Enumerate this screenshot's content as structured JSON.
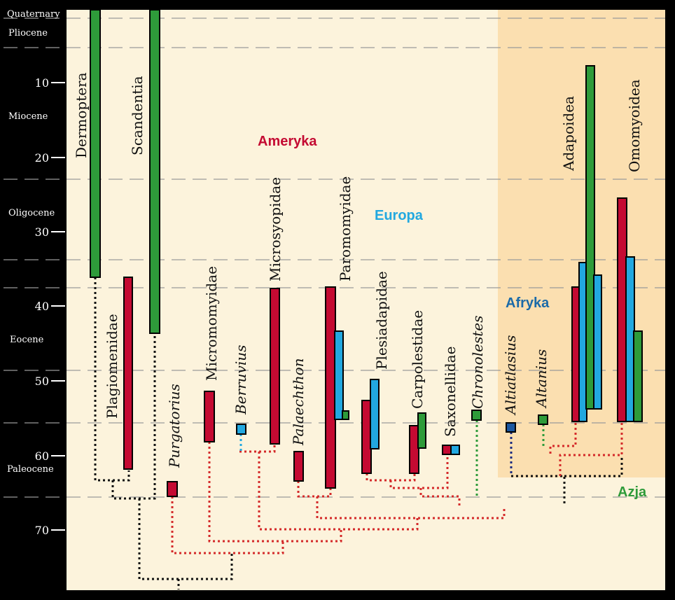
{
  "colors": {
    "background": "#000000",
    "chart_bg": "#fcf3dc",
    "africa_bg": "#fbdfb0",
    "green": "#2e9b3a",
    "red": "#c40a32",
    "blue": "#22a8e0",
    "navy": "#1a56a0",
    "black": "#000000"
  },
  "epochs": {
    "quaternary": "Quaternary",
    "pliocene": "Pliocene",
    "miocene": "Miocene",
    "oligocene": "Oligocene",
    "eocene": "Eocene",
    "paleocene": "Paleocene"
  },
  "ticks": [
    "10",
    "20",
    "30",
    "40",
    "50",
    "60",
    "70"
  ],
  "regions": {
    "america": "Ameryka",
    "europe": "Europa",
    "africa": "Afryka",
    "asia": "Azja"
  },
  "taxa": {
    "dermoptera": "Dermoptera",
    "scandentia": "Scandentia",
    "plagiomenidae": "Plagiomenidae",
    "purgatorius": "Purgatorius",
    "micromomyidae": "Micromomyidae",
    "berruvius": "Berruvius",
    "microsyopidae": "Microsyopidae",
    "palaechthon": "Palaechthon",
    "paromomyidae": "Paromomyidae",
    "plesiadapidae": "Plesiadapidae",
    "carpolestidae": "Carpolestidae",
    "saxonellidae": "Saxonellidae",
    "chronolestes": "Chronolestes",
    "altiatlasius": "Altiatlasius",
    "altanius": "Altanius",
    "adapoidea": "Adapoidea",
    "omomyoidea": "Omomyoidea"
  }
}
